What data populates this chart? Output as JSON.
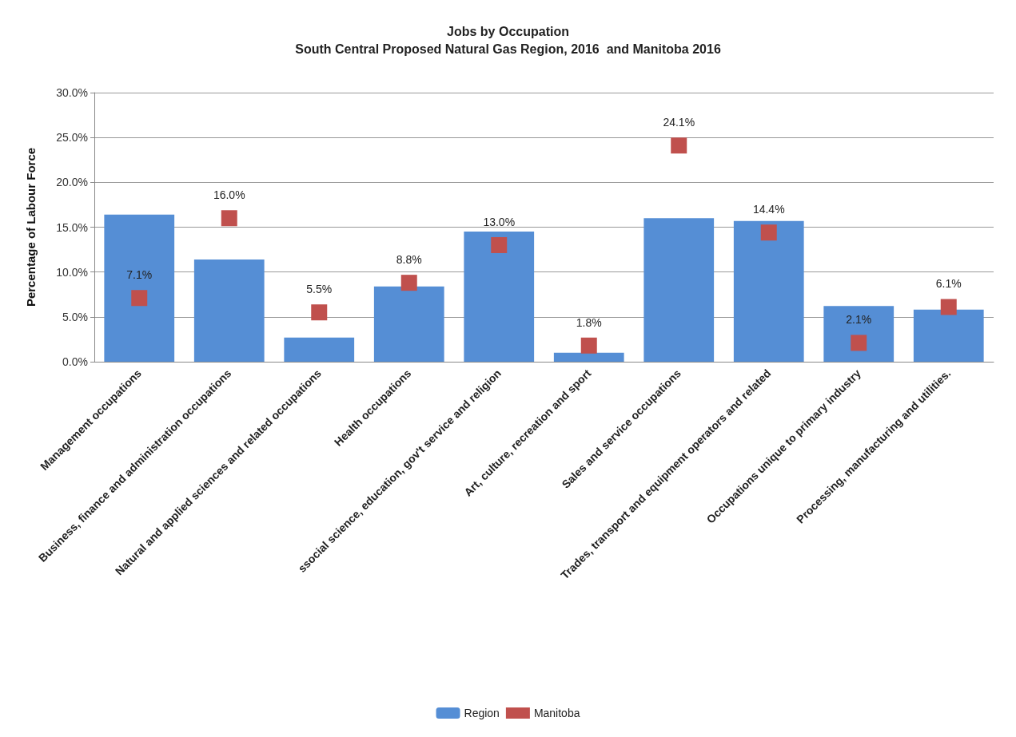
{
  "chart_data": {
    "type": "bar",
    "title": "Jobs by Occupation",
    "subtitle": "South Central Proposed Natural Gas Region, 2016  and Manitoba 2016",
    "ylabel": "Percentage of Labour Force",
    "categories": [
      "Management occupations",
      "Business, finance and administration occupations",
      "Natural and applied sciences and related occupations",
      "Health occupations",
      "ssocial science, education, gov't service and religion",
      "Art, culture, recreation and sport",
      "Sales and service occupations",
      "Trades, transport and equipment operators and related",
      "Occupations unique to primary industry",
      "Processing, manufacturing and utilities."
    ],
    "series": [
      {
        "name": "Region",
        "color": "#558ed5",
        "values": [
          16.4,
          11.4,
          2.7,
          8.4,
          14.5,
          1.0,
          16.0,
          15.7,
          6.2,
          5.8
        ]
      },
      {
        "name": "Manitoba",
        "type": "scatter",
        "color": "#c0504d",
        "marker": "square",
        "values": [
          7.1,
          16.0,
          5.5,
          8.8,
          13.0,
          1.8,
          24.1,
          14.4,
          2.1,
          6.1
        ],
        "value_labels": [
          "7.1%",
          "16.0%",
          "5.5%",
          "8.8%",
          "13.0%",
          "1.8%",
          "24.1%",
          "14.4%",
          "2.1%",
          "6.1%"
        ]
      }
    ],
    "ylim": [
      0,
      30
    ],
    "yticks": [
      {
        "value": 0,
        "label": "0.0%"
      },
      {
        "value": 5,
        "label": "5.0%"
      },
      {
        "value": 10,
        "label": "10.0%"
      },
      {
        "value": 15,
        "label": "15.0%"
      },
      {
        "value": 20,
        "label": "20.0%"
      },
      {
        "value": 25,
        "label": "25.0%"
      },
      {
        "value": 30,
        "label": "30.0%"
      }
    ],
    "grid": "y",
    "legend": "bottom"
  }
}
